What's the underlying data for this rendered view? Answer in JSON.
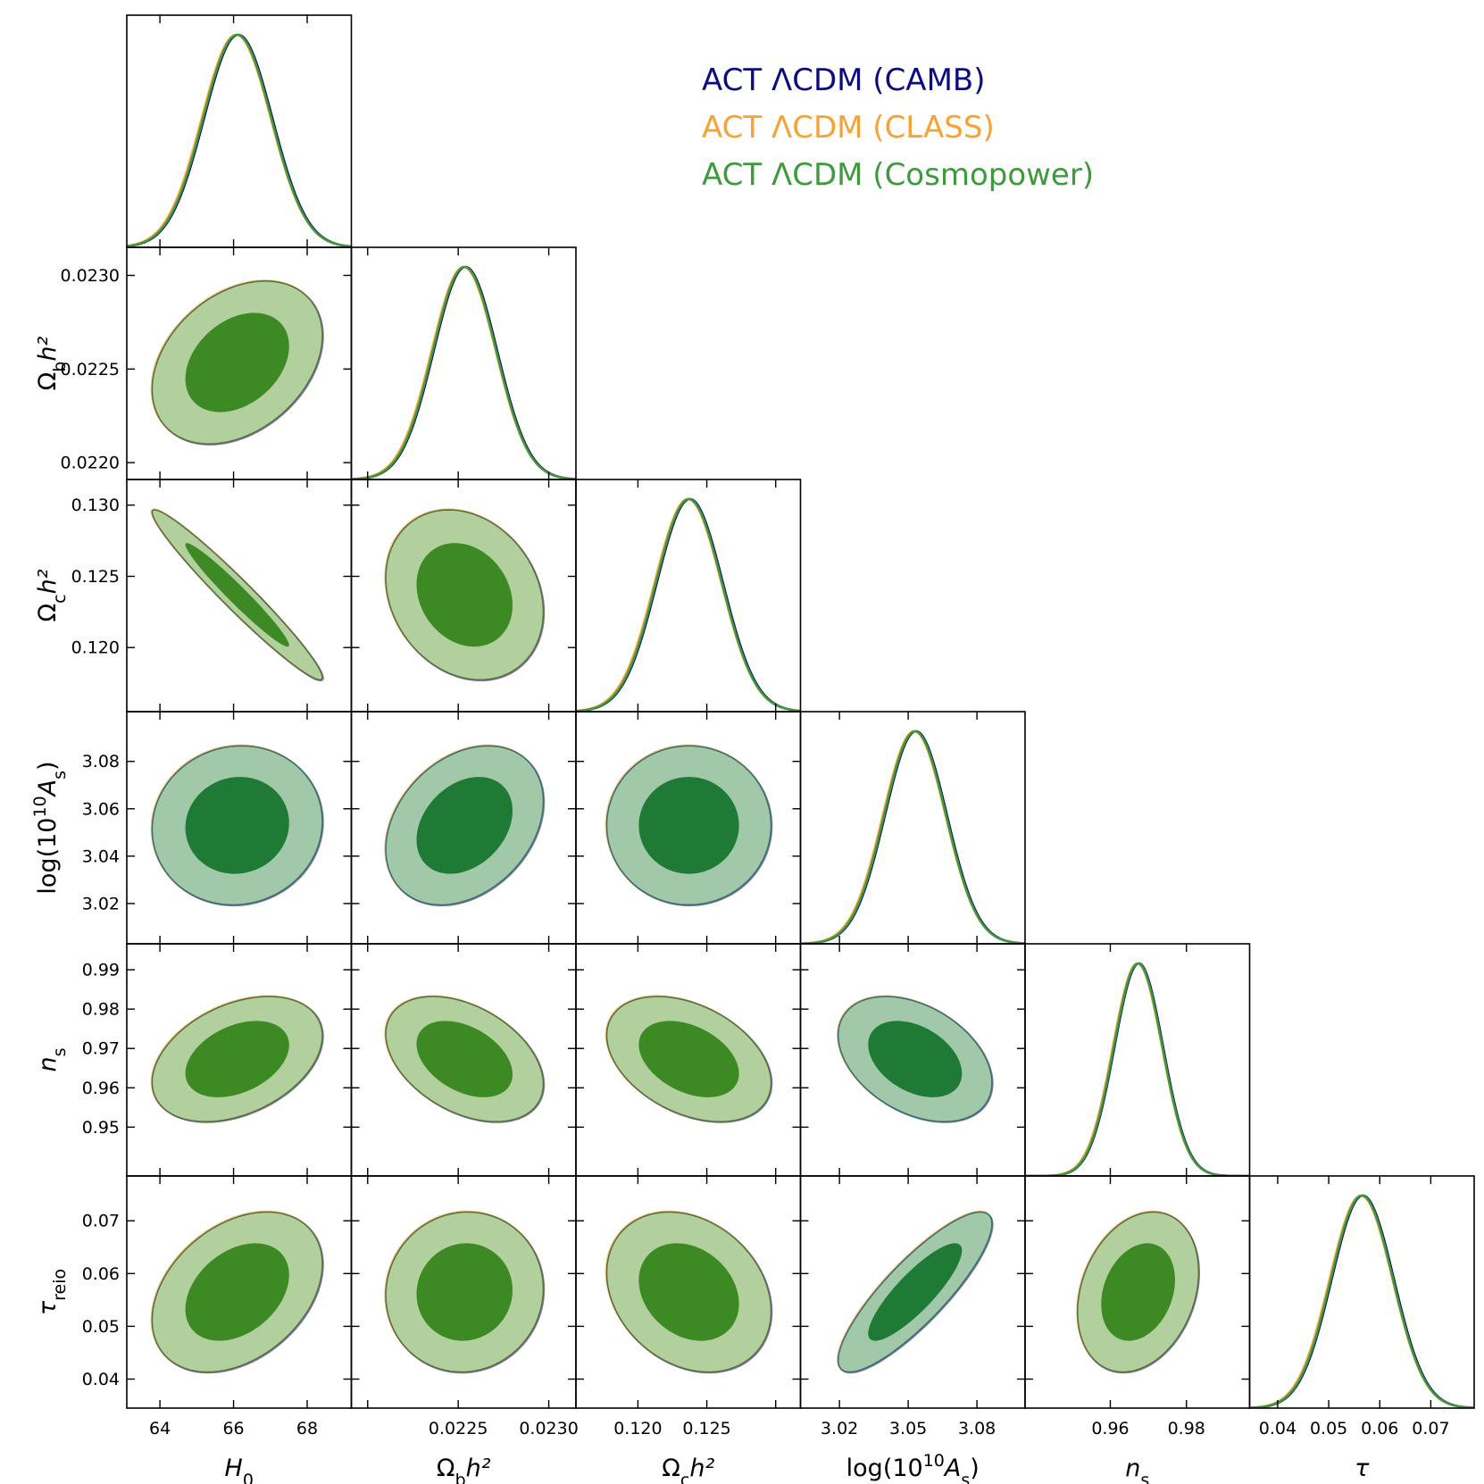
{
  "chart_data": {
    "type": "triangle-corner",
    "legend": {
      "placement": "top-right",
      "entries": [
        {
          "label": "ACT ΛCDM (CAMB)",
          "color": "#0c0c80"
        },
        {
          "label": "ACT ΛCDM (CLASS)",
          "color": "#f7a234"
        },
        {
          "label": "ACT ΛCDM (Cosmopower)",
          "color": "#3d9a3d"
        }
      ]
    },
    "fill_colors": {
      "inner": "#3d8a24",
      "outer": "#b1d09e",
      "inner_alt": "#1e7a35",
      "outer_alt": "#a1c8a8",
      "edge": "#5d6f3c",
      "edge_alt": "#3f6f6a"
    },
    "parameters": [
      {
        "name": "H0",
        "label_main": "H",
        "label_sub": "0",
        "row_label_main": "",
        "row_label_sub": "",
        "range": [
          63.1,
          69.2
        ],
        "ticks": [
          64,
          66,
          68
        ],
        "tick_labels": [
          "64",
          "66",
          "68"
        ],
        "mean": 66.1,
        "sigma": 0.93
      },
      {
        "name": "ombh2",
        "label_main": "Ω",
        "label_sub": "b",
        "label_tail": "h²",
        "row_label_main": "Ω",
        "row_label_sub": "b",
        "range": [
          0.02191,
          0.02315
        ],
        "ticks": [
          0.022,
          0.0225,
          0.023
        ],
        "tick_labels": [
          "0.0220",
          "0.0225",
          "0.0230"
        ],
        "x_tick_labels_shown": [
          "",
          "0.0225",
          "0.0230"
        ],
        "mean": 0.022535,
        "sigma": 0.000175
      },
      {
        "name": "omch2",
        "label_main": "Ω",
        "label_sub": "c",
        "label_tail": "h²",
        "row_label_main": "Ω",
        "row_label_sub": "c",
        "range": [
          0.1155,
          0.1318
        ],
        "ticks": [
          0.12,
          0.125,
          0.13
        ],
        "tick_labels": [
          "0.120",
          "0.125",
          "0.130"
        ],
        "x_tick_labels_shown": [
          "0.120",
          "0.125",
          ""
        ],
        "mean": 0.1237,
        "sigma": 0.0024
      },
      {
        "name": "logA",
        "label_main": "log(10",
        "label_sup": "10",
        "label_tail": "A",
        "label_sub": "s",
        "range": [
          3.003,
          3.101
        ],
        "ticks": [
          3.02,
          3.04,
          3.05,
          3.06,
          3.08
        ],
        "tick_labels": [
          "3.02",
          "3.04",
          "3.05",
          "3.06",
          "3.08"
        ],
        "y_ticks": [
          3.02,
          3.04,
          3.06,
          3.08
        ],
        "y_tick_labels": [
          "3.02",
          "3.04",
          "3.06",
          "3.08"
        ],
        "x_ticks": [
          3.02,
          3.05,
          3.08
        ],
        "x_tick_labels": [
          "3.02",
          "3.05",
          "3.08"
        ],
        "mean": 3.053,
        "sigma": 0.0135
      },
      {
        "name": "ns",
        "label_main": "n",
        "label_sub": "s",
        "range": [
          0.9376,
          0.9966
        ],
        "ticks": [
          0.95,
          0.96,
          0.97,
          0.98,
          0.99
        ],
        "tick_labels": [
          "0.95",
          "0.96",
          "0.97",
          "0.98",
          "0.99"
        ],
        "x_ticks": [
          0.96,
          0.98
        ],
        "x_tick_labels": [
          "0.96",
          "0.98"
        ],
        "mean": 0.9673,
        "sigma": 0.0064
      },
      {
        "name": "tau",
        "label_main": "τ",
        "row_label_main": "τ",
        "row_label_sub": "reio",
        "range": [
          0.0345,
          0.0785
        ],
        "ticks": [
          0.04,
          0.05,
          0.06,
          0.07
        ],
        "tick_labels": [
          "0.04",
          "0.05",
          "0.06",
          "0.07"
        ],
        "mean": 0.0565,
        "sigma": 0.0061
      }
    ],
    "correlations": [
      [
        1,
        0.33,
        -0.97,
        0.05,
        0.37,
        0.35
      ],
      [
        0.33,
        1,
        -0.2,
        0.3,
        -0.4,
        0.04
      ],
      [
        -0.97,
        -0.2,
        1,
        0.0,
        -0.38,
        -0.24
      ],
      [
        0.05,
        0.3,
        0.0,
        1,
        -0.38,
        0.85
      ],
      [
        0.37,
        -0.4,
        -0.38,
        -0.38,
        1,
        0.25
      ],
      [
        0.35,
        0.04,
        -0.24,
        0.85,
        0.25,
        1
      ]
    ]
  }
}
